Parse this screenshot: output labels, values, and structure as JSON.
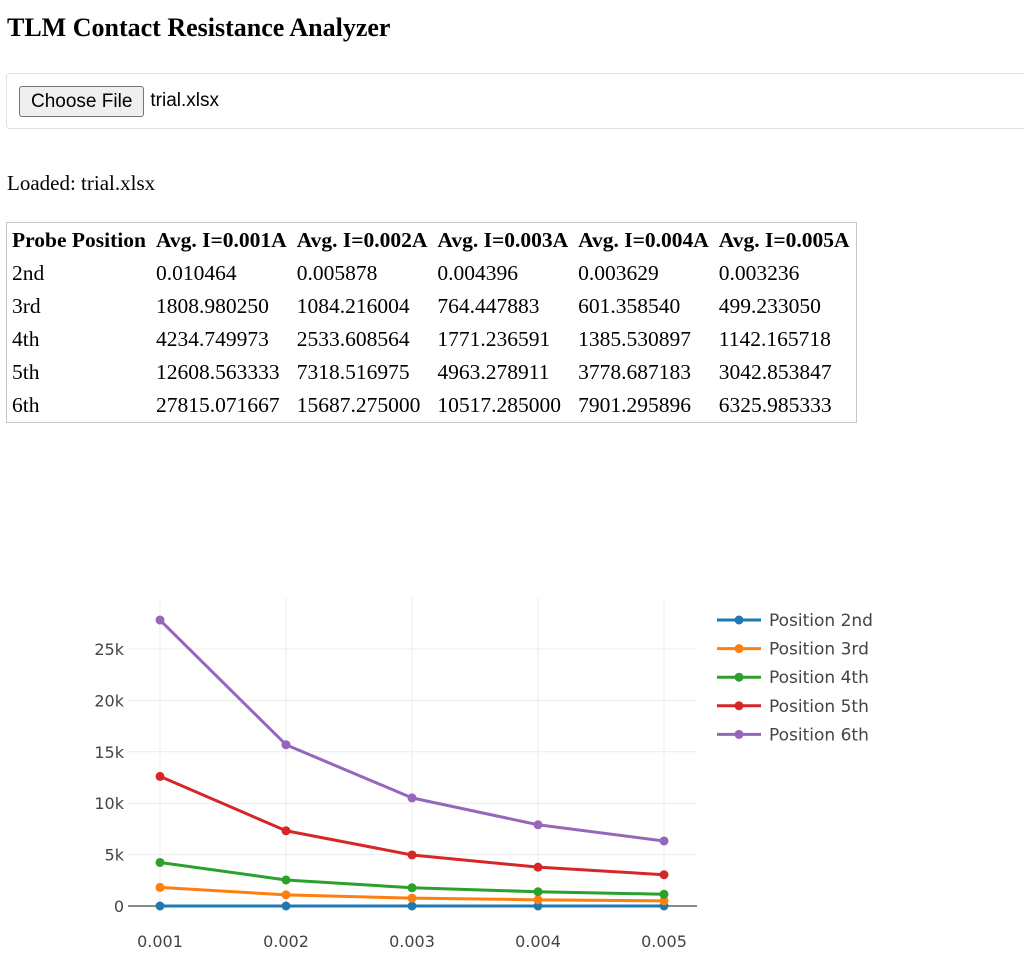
{
  "header": {
    "title": "TLM Contact Resistance Analyzer"
  },
  "upload": {
    "button_label": "Choose File",
    "file_name": "trial.xlsx"
  },
  "status": {
    "text": "Loaded: trial.xlsx"
  },
  "table": {
    "columns": [
      "Probe Position",
      "Avg. I=0.001A",
      "Avg. I=0.002A",
      "Avg. I=0.003A",
      "Avg. I=0.004A",
      "Avg. I=0.005A"
    ],
    "rows": [
      [
        "2nd",
        "0.010464",
        "0.005878",
        "0.004396",
        "0.003629",
        "0.003236"
      ],
      [
        "3rd",
        "1808.980250",
        "1084.216004",
        "764.447883",
        "601.358540",
        "499.233050"
      ],
      [
        "4th",
        "4234.749973",
        "2533.608564",
        "1771.236591",
        "1385.530897",
        "1142.165718"
      ],
      [
        "5th",
        "12608.563333",
        "7318.516975",
        "4963.278911",
        "3778.687183",
        "3042.853847"
      ],
      [
        "6th",
        "27815.071667",
        "15687.275000",
        "10517.285000",
        "7901.295896",
        "6325.985333"
      ]
    ]
  },
  "chart_data": {
    "type": "line",
    "x": [
      0.001,
      0.002,
      0.003,
      0.004,
      0.005
    ],
    "x_tick_labels": [
      "0.001",
      "0.002",
      "0.003",
      "0.004",
      "0.005"
    ],
    "y_ticks": [
      0,
      5000,
      10000,
      15000,
      20000,
      25000
    ],
    "y_tick_labels": [
      "0",
      "5k",
      "10k",
      "15k",
      "20k",
      "25k"
    ],
    "xlim": [
      0.001,
      0.005
    ],
    "ylim": [
      0,
      28000
    ],
    "grid": true,
    "legend_position": "right",
    "series": [
      {
        "name": "Position 2nd",
        "color": "#1f77b4",
        "values": [
          0.010464,
          0.005878,
          0.004396,
          0.003629,
          0.003236
        ]
      },
      {
        "name": "Position 3rd",
        "color": "#ff7f0e",
        "values": [
          1808.98025,
          1084.216004,
          764.447883,
          601.35854,
          499.23305
        ]
      },
      {
        "name": "Position 4th",
        "color": "#2ca02c",
        "values": [
          4234.749973,
          2533.608564,
          1771.236591,
          1385.530897,
          1142.165718
        ]
      },
      {
        "name": "Position 5th",
        "color": "#d62728",
        "values": [
          12608.563333,
          7318.516975,
          4963.278911,
          3778.687183,
          3042.853847
        ]
      },
      {
        "name": "Position 6th",
        "color": "#9467bd",
        "values": [
          27815.071667,
          15687.275,
          10517.285,
          7901.295896,
          6325.985333
        ]
      }
    ]
  }
}
